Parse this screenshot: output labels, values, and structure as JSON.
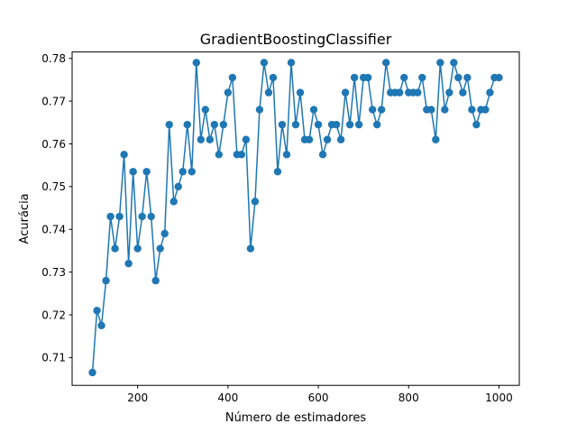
{
  "chart_data": {
    "type": "line",
    "title": "GradientBoostingClassifier",
    "xlabel": "Número de estimadores",
    "ylabel": "Acurácia",
    "xlim": [
      55,
      1045
    ],
    "ylim": [
      0.7035,
      0.7815
    ],
    "xticks": [
      200,
      400,
      600,
      800,
      1000
    ],
    "yticks": [
      0.71,
      0.72,
      0.73,
      0.74,
      0.75,
      0.76,
      0.77,
      0.78
    ],
    "grid": false,
    "legend": "none",
    "color": "#1f77b4",
    "marker": "circle",
    "series": [
      {
        "x": [
          100,
          110,
          120,
          130,
          140,
          150,
          160,
          170,
          180,
          190,
          200,
          210,
          220,
          230,
          240,
          250,
          260,
          270,
          280,
          290,
          300,
          310,
          320,
          330,
          340,
          350,
          360,
          370,
          380,
          390,
          400,
          410,
          420,
          430,
          440,
          450,
          460,
          470,
          480,
          490,
          500,
          510,
          520,
          530,
          540,
          550,
          560,
          570,
          580,
          590,
          600,
          610,
          620,
          630,
          640,
          650,
          660,
          670,
          680,
          690,
          700,
          710,
          720,
          730,
          740,
          750,
          760,
          770,
          780,
          790,
          800,
          810,
          820,
          830,
          840,
          850,
          860,
          870,
          880,
          890,
          900,
          910,
          920,
          930,
          940,
          950,
          960,
          970,
          980,
          990,
          1000
        ],
        "y": [
          0.7065,
          0.721,
          0.7175,
          0.728,
          0.743,
          0.7355,
          0.743,
          0.7575,
          0.732,
          0.7535,
          0.7355,
          0.743,
          0.7535,
          0.743,
          0.728,
          0.7355,
          0.739,
          0.7645,
          0.7465,
          0.75,
          0.7535,
          0.7645,
          0.7535,
          0.779,
          0.761,
          0.768,
          0.761,
          0.7645,
          0.7575,
          0.7645,
          0.772,
          0.7755,
          0.7575,
          0.7575,
          0.761,
          0.7355,
          0.7465,
          0.768,
          0.779,
          0.772,
          0.7755,
          0.7535,
          0.7645,
          0.7575,
          0.779,
          0.7645,
          0.772,
          0.761,
          0.761,
          0.768,
          0.7645,
          0.7575,
          0.761,
          0.7645,
          0.7645,
          0.761,
          0.772,
          0.7645,
          0.7755,
          0.7645,
          0.7755,
          0.7755,
          0.768,
          0.7645,
          0.768,
          0.779,
          0.772,
          0.772,
          0.772,
          0.7755,
          0.772,
          0.772,
          0.772,
          0.7755,
          0.768,
          0.768,
          0.761,
          0.779,
          0.768,
          0.772,
          0.779,
          0.7755,
          0.772,
          0.7755,
          0.768,
          0.7645,
          0.768,
          0.768,
          0.772,
          0.7755,
          0.7755
        ]
      }
    ]
  }
}
